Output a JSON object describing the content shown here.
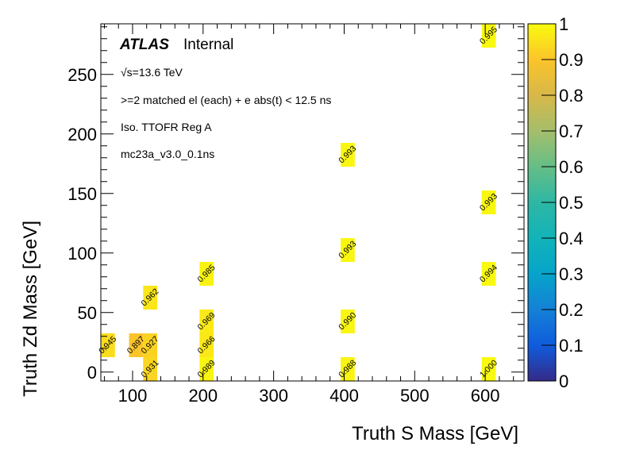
{
  "chart_data": {
    "type": "heatmap",
    "title": "",
    "xlabel": "Truth S Mass [GeV]",
    "ylabel": "Truth Zd Mass [GeV]",
    "xlim": [
      55,
      655
    ],
    "ylim": [
      -7.5,
      292.5
    ],
    "x_bin_width": 20,
    "y_bin_width": 20,
    "x_ticks": [
      100,
      200,
      300,
      400,
      500,
      600
    ],
    "y_ticks": [
      0,
      50,
      100,
      150,
      200,
      250
    ],
    "z_range": [
      0,
      1
    ],
    "colorbar_ticks": [
      "0",
      "0.1",
      "0.2",
      "0.3",
      "0.4",
      "0.5",
      "0.6",
      "0.7",
      "0.8",
      "0.9",
      "1"
    ],
    "colormap": "bird",
    "annotations": {
      "atlas": "ATLAS",
      "status": "Internal",
      "energy": "√s=13.6 TeV",
      "selection": ">=2 matched el (each) + e abs(t) < 12.5 ns",
      "region": "Iso. TTOFR Reg A",
      "sample": "mc23a_v3.0_0.1ns"
    },
    "cells": [
      {
        "x": 65,
        "y": 22.5,
        "value": 0.945,
        "label": "0.945"
      },
      {
        "x": 105,
        "y": 22.5,
        "value": 0.897,
        "label": "0.897"
      },
      {
        "x": 125,
        "y": 22.5,
        "value": 0.927,
        "label": "0.927"
      },
      {
        "x": 125,
        "y": 2.5,
        "value": 0.931,
        "label": "0.931"
      },
      {
        "x": 125,
        "y": 62.5,
        "value": 0.962,
        "label": "0.962"
      },
      {
        "x": 205,
        "y": 2.5,
        "value": 0.989,
        "label": "0.989"
      },
      {
        "x": 205,
        "y": 22.5,
        "value": 0.966,
        "label": "0.966"
      },
      {
        "x": 205,
        "y": 42.5,
        "value": 0.969,
        "label": "0.969"
      },
      {
        "x": 205,
        "y": 82.5,
        "value": 0.985,
        "label": "0.985"
      },
      {
        "x": 405,
        "y": 2.5,
        "value": 0.988,
        "label": "0.988"
      },
      {
        "x": 405,
        "y": 42.5,
        "value": 0.99,
        "label": "0.990"
      },
      {
        "x": 405,
        "y": 102.5,
        "value": 0.993,
        "label": "0.993"
      },
      {
        "x": 405,
        "y": 182.5,
        "value": 0.993,
        "label": "0.993"
      },
      {
        "x": 605,
        "y": 2.5,
        "value": 1.0,
        "label": "1.000"
      },
      {
        "x": 605,
        "y": 82.5,
        "value": 0.994,
        "label": "0.994"
      },
      {
        "x": 605,
        "y": 142.5,
        "value": 0.993,
        "label": "0.993"
      },
      {
        "x": 605,
        "y": 282.5,
        "value": 0.995,
        "label": "0.995"
      }
    ]
  }
}
